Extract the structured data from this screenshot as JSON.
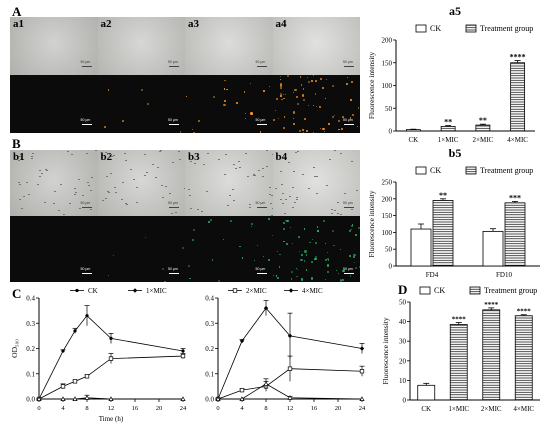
{
  "panels": {
    "A": {
      "label": "A",
      "tiles": [
        "a1",
        "a2",
        "a3",
        "a4"
      ]
    },
    "B": {
      "label": "B",
      "tiles": [
        "b1",
        "b2",
        "b3",
        "b4"
      ]
    },
    "C": {
      "label": "C"
    },
    "D": {
      "label": "D"
    }
  },
  "scale_bar": "50 μm",
  "scale_bar_b": "50 μm",
  "colors": {
    "bright": "#c8c8c4",
    "dark": "#0b0b0b",
    "fluor_a": "#ff9a2a",
    "fluor_b": "#2fb36a"
  },
  "chart_data": [
    {
      "id": "a5",
      "type": "bar",
      "title": "a5",
      "categories": [
        "CK",
        "1×MIC",
        "2×MIC",
        "4×MIC"
      ],
      "values": [
        3,
        10,
        13,
        150
      ],
      "errors": [
        1,
        2,
        2,
        5
      ],
      "sig": [
        "",
        "**",
        "**",
        "****"
      ],
      "ylabel": "Fluorescence intensity",
      "ylim": [
        0,
        200
      ],
      "yticks": [
        0,
        50,
        100,
        150,
        200
      ],
      "legend": [
        "CK",
        "Treatment group"
      ],
      "legend_placement": "top"
    },
    {
      "id": "b5",
      "type": "bar",
      "title": "b5",
      "categories": [
        "FD4",
        "FD10"
      ],
      "series": [
        {
          "name": "CK",
          "values": [
            110,
            103
          ],
          "errors": [
            15,
            8
          ],
          "sig": [
            "",
            ""
          ]
        },
        {
          "name": "Treatment group",
          "values": [
            195,
            188
          ],
          "errors": [
            5,
            4
          ],
          "sig": [
            "**",
            "***"
          ]
        }
      ],
      "ylabel": "Fluorescence intensity",
      "ylim": [
        0,
        250
      ],
      "yticks": [
        0,
        50,
        100,
        150,
        200,
        250
      ],
      "legend": [
        "CK",
        "Treatment group"
      ],
      "legend_placement": "top"
    },
    {
      "id": "c1",
      "type": "line",
      "x": [
        0,
        4,
        6,
        8,
        12,
        24
      ],
      "series": [
        {
          "name": "CK",
          "values": [
            0,
            0.19,
            0.27,
            0.33,
            0.24,
            0.19
          ],
          "errors": [
            0,
            0.005,
            0.01,
            0.04,
            0.02,
            0.01
          ]
        },
        {
          "name": "1×MIC",
          "values": [
            0,
            0.05,
            0.07,
            0.09,
            0.16,
            0.17
          ],
          "errors": [
            0,
            0.01,
            0.005,
            0.005,
            0.02,
            0.01
          ]
        },
        {
          "name": "",
          "values": [
            0,
            0,
            0,
            0.005,
            0,
            0
          ],
          "errors": [
            0,
            0,
            0,
            0.01,
            0,
            0
          ]
        }
      ],
      "legend": [
        "CK",
        "1×MIC"
      ],
      "legend_placement": "top",
      "ylabel": "OD₅₉₀",
      "xlabel": "Time (h)",
      "ylim": [
        0,
        0.4
      ],
      "yticks": [
        0,
        0.1,
        0.2,
        0.3,
        0.4
      ],
      "xlim": [
        0,
        24
      ],
      "xticks": [
        0,
        4,
        8,
        12,
        16,
        20,
        24
      ]
    },
    {
      "id": "c2",
      "type": "line",
      "x": [
        0,
        4,
        8,
        12,
        24
      ],
      "series": [
        {
          "name": "4×MIC",
          "values": [
            0,
            0.23,
            0.36,
            0.25,
            0.2
          ],
          "errors": [
            0,
            0.005,
            0.03,
            0.09,
            0.02
          ]
        },
        {
          "name": "2×MIC",
          "values": [
            0,
            0.035,
            0.05,
            0.12,
            0.11
          ],
          "errors": [
            0,
            0.005,
            0.02,
            0.05,
            0.02
          ]
        },
        {
          "name": "",
          "values": [
            0,
            0,
            0.06,
            0.005,
            0
          ],
          "errors": [
            0,
            0,
            0.02,
            0.005,
            0
          ]
        }
      ],
      "legend": [
        "2×MIC",
        "4×MIC"
      ],
      "legend_placement": "top",
      "ylim": [
        0,
        0.4
      ],
      "xlim": [
        0,
        24
      ],
      "xticks": [
        0,
        4,
        8,
        12,
        16,
        20,
        24
      ]
    },
    {
      "id": "d",
      "type": "bar",
      "categories": [
        "CK",
        "1×MIC",
        "2×MIC",
        "4×MIC"
      ],
      "values": [
        7.5,
        38.5,
        46,
        43
      ],
      "errors": [
        1,
        1,
        1,
        0.5
      ],
      "sig": [
        "",
        "****",
        "****",
        "****"
      ],
      "ylabel": "Fluorescence intensity",
      "ylim": [
        0,
        50
      ],
      "yticks": [
        0,
        10,
        20,
        30,
        40,
        50
      ],
      "legend": [
        "CK",
        "Treatment group"
      ],
      "legend_placement": "top"
    }
  ]
}
